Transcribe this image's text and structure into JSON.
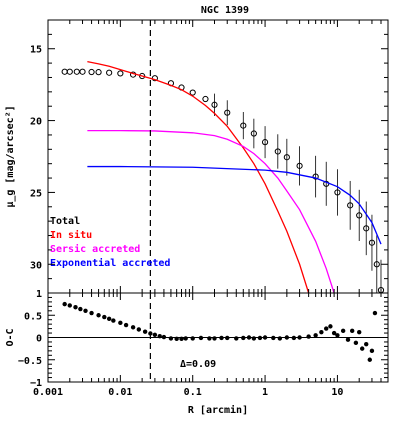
{
  "chart_data": [
    {
      "type": "scatter",
      "title": "NGC 1399",
      "xlabel": "",
      "ylabel": "μ_g [mag/arcsec²]",
      "xscale": "log",
      "xlim": [
        0.001,
        50
      ],
      "ylim": [
        32,
        13
      ],
      "y_inverted": true,
      "x_ticks": [
        0.001,
        0.01,
        0.1,
        1,
        10
      ],
      "y_ticks": [
        15,
        20,
        25,
        30
      ],
      "y_tick_labels": [
        "15",
        "20",
        "25",
        "30"
      ],
      "vline": {
        "x": 0.026,
        "style": "dashed"
      },
      "legend_position": "bottom-left",
      "series": [
        {
          "name": "Total",
          "color": "#000000",
          "kind": "points",
          "x": [
            0.0017,
            0.002,
            0.0025,
            0.003,
            0.004,
            0.005,
            0.007,
            0.01,
            0.015,
            0.02,
            0.03,
            0.05,
            0.07,
            0.1,
            0.15,
            0.2,
            0.3,
            0.5,
            0.7,
            1,
            1.5,
            2,
            3,
            5,
            7,
            10,
            15,
            20,
            25,
            30,
            35,
            40
          ],
          "y": [
            16.6,
            16.6,
            16.6,
            16.6,
            16.62,
            16.63,
            16.67,
            16.72,
            16.8,
            16.9,
            17.05,
            17.4,
            17.7,
            18.05,
            18.5,
            18.9,
            19.45,
            20.35,
            20.9,
            21.5,
            22.15,
            22.55,
            23.15,
            23.9,
            24.4,
            25.0,
            25.9,
            26.6,
            27.5,
            28.5,
            30.0,
            31.8
          ]
        },
        {
          "name": "In situ",
          "color": "#ff0000",
          "kind": "line",
          "x": [
            0.0035,
            0.005,
            0.007,
            0.01,
            0.015,
            0.02,
            0.03,
            0.05,
            0.07,
            0.1,
            0.15,
            0.2,
            0.3,
            0.5,
            0.7,
            1,
            1.5,
            2,
            3,
            4
          ],
          "y": [
            15.9,
            16.05,
            16.22,
            16.45,
            16.72,
            16.9,
            17.15,
            17.55,
            17.85,
            18.3,
            18.95,
            19.5,
            20.4,
            21.9,
            23.0,
            24.4,
            26.3,
            27.7,
            30.0,
            32.0
          ]
        },
        {
          "name": "Sersic accreted",
          "color": "#ff00ff",
          "kind": "line",
          "x": [
            0.0035,
            0.01,
            0.03,
            0.1,
            0.2,
            0.3,
            0.5,
            0.7,
            1,
            1.5,
            2,
            3,
            5,
            7,
            9
          ],
          "y": [
            20.7,
            20.7,
            20.72,
            20.85,
            21.05,
            21.3,
            21.8,
            22.3,
            23.0,
            24.0,
            24.9,
            26.2,
            28.4,
            30.3,
            32.0
          ]
        },
        {
          "name": "Exponential accreted",
          "color": "#0000ff",
          "kind": "line",
          "x": [
            0.0035,
            0.01,
            0.1,
            1,
            2,
            5,
            10,
            15,
            20,
            30,
            40
          ],
          "y": [
            23.2,
            23.2,
            23.25,
            23.45,
            23.6,
            24.0,
            24.6,
            25.2,
            25.8,
            27.1,
            28.6
          ]
        }
      ]
    },
    {
      "type": "scatter",
      "xlabel": "R [arcmin]",
      "ylabel": "O-C",
      "xscale": "log",
      "xlim": [
        0.001,
        50
      ],
      "ylim": [
        -1,
        1
      ],
      "x_ticks": [
        0.001,
        0.01,
        0.1,
        1,
        10
      ],
      "x_tick_labels": [
        "0.001",
        "0.01",
        "0.1",
        "1",
        "10"
      ],
      "y_ticks": [
        -1,
        -0.5,
        0,
        0.5,
        1
      ],
      "y_tick_labels": [
        "−1",
        "−0.5",
        "0",
        "0.5",
        "1"
      ],
      "hline": {
        "y": 0
      },
      "vline": {
        "x": 0.026,
        "style": "dashed"
      },
      "annotation": "Δ=0.09",
      "series": [
        {
          "color": "#000000",
          "kind": "points",
          "x": [
            0.0017,
            0.002,
            0.0024,
            0.0028,
            0.0033,
            0.004,
            0.005,
            0.006,
            0.007,
            0.008,
            0.01,
            0.012,
            0.015,
            0.018,
            0.022,
            0.026,
            0.03,
            0.035,
            0.04,
            0.05,
            0.06,
            0.07,
            0.08,
            0.1,
            0.13,
            0.17,
            0.2,
            0.25,
            0.3,
            0.4,
            0.5,
            0.6,
            0.7,
            0.85,
            1,
            1.3,
            1.6,
            2,
            2.5,
            3,
            4,
            5,
            6,
            7,
            8,
            9,
            10,
            12,
            14,
            16,
            18,
            20,
            22,
            25,
            28,
            30,
            33
          ],
          "y": [
            0.75,
            0.72,
            0.68,
            0.64,
            0.6,
            0.55,
            0.5,
            0.46,
            0.42,
            0.38,
            0.33,
            0.28,
            0.23,
            0.18,
            0.13,
            0.09,
            0.06,
            0.03,
            0.01,
            -0.02,
            -0.03,
            -0.03,
            -0.02,
            -0.02,
            -0.01,
            -0.02,
            -0.02,
            -0.01,
            -0.01,
            -0.02,
            -0.01,
            0.0,
            -0.02,
            -0.01,
            0.0,
            -0.01,
            -0.02,
            0.0,
            -0.01,
            0.0,
            0.02,
            0.05,
            0.12,
            0.2,
            0.25,
            0.1,
            0.05,
            0.15,
            -0.05,
            0.15,
            -0.12,
            0.12,
            -0.25,
            -0.15,
            -0.5,
            -0.3,
            0.55
          ]
        }
      ]
    }
  ],
  "legend": {
    "items": [
      {
        "label": "Total",
        "color": "#000000"
      },
      {
        "label": "In situ",
        "color": "#ff0000"
      },
      {
        "label": "Sersic accreted",
        "color": "#ff00ff"
      },
      {
        "label": "Exponential accreted",
        "color": "#0000ff"
      }
    ]
  }
}
